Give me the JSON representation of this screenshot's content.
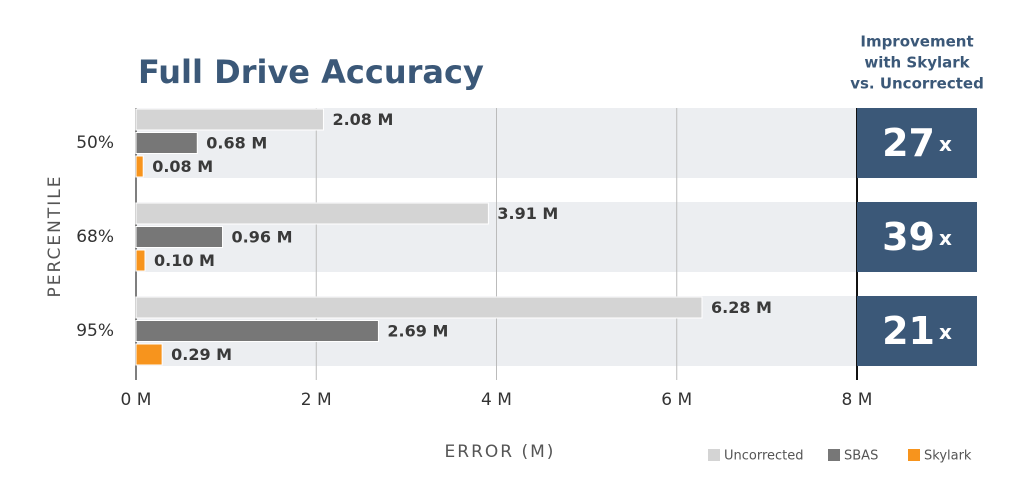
{
  "chart_data": {
    "type": "bar",
    "orientation": "horizontal",
    "title": "Full Drive Accuracy",
    "x_label": "ERROR (M)",
    "y_label": "PERCENTILE",
    "categories": [
      "50%",
      "68%",
      "95%"
    ],
    "series": [
      {
        "name": "Uncorrected",
        "color": "#d4d4d4",
        "values": [
          2.08,
          3.91,
          6.28
        ],
        "value_labels": [
          "2.08 M",
          "3.91 M",
          "6.28 M"
        ]
      },
      {
        "name": "SBAS",
        "color": "#777777",
        "values": [
          0.68,
          0.96,
          2.69
        ],
        "value_labels": [
          "0.68 M",
          "0.96 M",
          "2.69 M"
        ]
      },
      {
        "name": "Skylark",
        "color": "#f7941d",
        "values": [
          0.08,
          0.1,
          0.29
        ],
        "value_labels": [
          "0.08 M",
          "0.10 M",
          "0.29 M"
        ]
      }
    ],
    "xlim": [
      0,
      8
    ],
    "xticks": [
      {
        "value": 0,
        "label": "0 M"
      },
      {
        "value": 2,
        "label": "2 M"
      },
      {
        "value": 4,
        "label": "4 M"
      },
      {
        "value": 6,
        "label": "6 M"
      },
      {
        "value": 8,
        "label": "8 M"
      }
    ],
    "grid": true,
    "legend": "bottom-right",
    "improvement": {
      "title": [
        "Improvement",
        "with Skylark",
        "vs. Uncorrected"
      ],
      "values": [
        27,
        39,
        21
      ],
      "unit": "x",
      "color": "#3b5878"
    }
  }
}
